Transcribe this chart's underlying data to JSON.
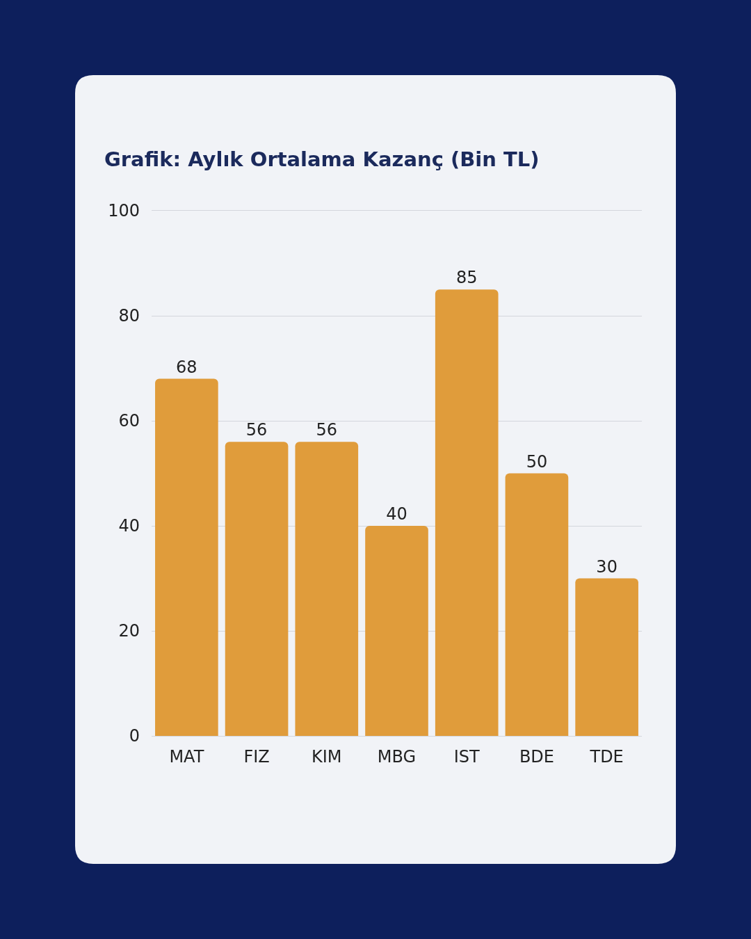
{
  "chart_data": {
    "type": "bar",
    "title": "Grafik: Aylık Ortalama Kazanç (Bin TL)",
    "categories": [
      "MAT",
      "FIZ",
      "KIM",
      "MBG",
      "IST",
      "BDE",
      "TDE"
    ],
    "values": [
      68,
      56,
      56,
      40,
      85,
      50,
      30
    ],
    "color": "#e09c3b",
    "ylim": [
      0,
      100
    ],
    "yticks": [
      0,
      20,
      40,
      60,
      80,
      100
    ],
    "grid": "y",
    "data_labels": true
  }
}
